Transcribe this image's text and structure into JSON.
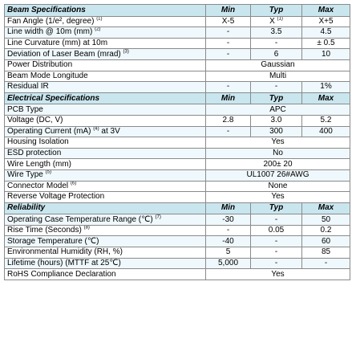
{
  "sections": [
    {
      "title": "Beam Specifications",
      "headers": [
        "Min",
        "Typ",
        "Max"
      ],
      "rows": [
        {
          "label": "Fan Angle (1/e², degree)",
          "note": "(1)",
          "min": "X-5",
          "typ": "X",
          "typ_note": "(1)",
          "max": "X+5"
        },
        {
          "label": "Line width @ 10m (mm)",
          "note": "(2)",
          "min": "-",
          "typ": "3.5",
          "max": "4.5"
        },
        {
          "label": "Line Curvature (mm) at 10m",
          "min": "-",
          "typ": "-",
          "max": "± 0.5"
        },
        {
          "label": "Deviation of Laser Beam (mrad)",
          "note": "(3)",
          "min": "-",
          "typ": "6",
          "max": "10"
        },
        {
          "label": "Power Distribution",
          "span": "Gaussian"
        },
        {
          "label": "Beam Mode Longitude",
          "span": "Multi"
        },
        {
          "label": "Residual IR",
          "min": "-",
          "typ": "-",
          "max": "1%"
        }
      ]
    },
    {
      "title": "Electrical Specifications",
      "headers": [
        "Min",
        "Typ",
        "Max"
      ],
      "rows": [
        {
          "label": "PCB Type",
          "span": "APC"
        },
        {
          "label": "Voltage  (DC, V)",
          "min": "2.8",
          "typ": "3.0",
          "max": "5.2"
        },
        {
          "label": "Operating Current (mA)",
          "note": "(4)",
          "label_suffix": " at 3V",
          "min": "-",
          "typ": "300",
          "max": "400"
        },
        {
          "label": "Housing Isolation",
          "span": "Yes"
        },
        {
          "label": "ESD protection",
          "span": "No"
        },
        {
          "label": "Wire Length (mm)",
          "span": "200± 20"
        },
        {
          "label": "Wire Type",
          "note": "(5)",
          "span": "UL1007 26#AWG"
        },
        {
          "label": "Connector Model",
          "note": "(6)",
          "span": "None"
        },
        {
          "label": "Reverse Voltage Protection",
          "span": "Yes"
        }
      ]
    },
    {
      "title": "Reliability",
      "headers": [
        "Min",
        "Typ",
        "Max"
      ],
      "rows": [
        {
          "label": "Operating Case Temperature Range  (℃)",
          "note": "(7)",
          "min": "-30",
          "typ": "-",
          "max": "50"
        },
        {
          "label": "Rise Time (Seconds)",
          "note": "(8)",
          "min": "-",
          "typ": "0.05",
          "max": "0.2"
        },
        {
          "label": "Storage Temperature (℃)",
          "min": "-40",
          "typ": "-",
          "max": "60"
        },
        {
          "label": "Environmental Humidity (RH, %)",
          "min": "5",
          "typ": "-",
          "max": "85"
        },
        {
          "label": "Lifetime (hours) (MTTF at 25℃)",
          "min": "5,000",
          "typ": "-",
          "max": "-"
        },
        {
          "label": "RoHS Compliance Declaration",
          "span": "Yes"
        }
      ]
    }
  ]
}
